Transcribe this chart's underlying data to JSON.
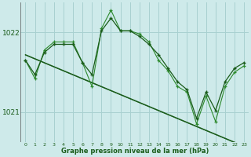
{
  "title": "Graphe pression niveau de la mer (hPa)",
  "bg_color": "#ceeaea",
  "grid_color": "#a8d0d0",
  "line_color_dark": "#1a5c1a",
  "line_color_light": "#2d8a2d",
  "x_labels": [
    "0",
    "1",
    "2",
    "3",
    "4",
    "5",
    "6",
    "7",
    "8",
    "9",
    "10",
    "11",
    "12",
    "13",
    "14",
    "15",
    "16",
    "17",
    "18",
    "19",
    "20",
    "21",
    "22",
    "23"
  ],
  "y_ticks": [
    1021,
    1022
  ],
  "ylim": [
    1020.62,
    1022.38
  ],
  "series1": [
    1021.65,
    1021.47,
    1021.75,
    1021.85,
    1021.85,
    1021.85,
    1021.62,
    1021.47,
    1022.02,
    1022.18,
    1022.02,
    1022.02,
    1021.95,
    1021.85,
    1021.72,
    1021.55,
    1021.38,
    1021.28,
    1020.92,
    1021.25,
    1021.02,
    1021.38,
    1021.55,
    1021.62
  ],
  "series2": [
    1021.65,
    1021.42,
    1021.78,
    1021.88,
    1021.88,
    1021.88,
    1021.62,
    1021.32,
    1022.05,
    1022.28,
    1022.02,
    1022.02,
    1021.98,
    1021.88,
    1021.65,
    1021.52,
    1021.32,
    1021.25,
    1020.85,
    1021.2,
    1020.88,
    1021.32,
    1021.5,
    1021.58
  ],
  "trend": [
    1021.72,
    1021.67,
    1021.62,
    1021.57,
    1021.52,
    1021.47,
    1021.42,
    1021.37,
    1021.32,
    1021.27,
    1021.22,
    1021.17,
    1021.12,
    1021.07,
    1021.02,
    1020.97,
    1020.92,
    1020.87,
    1020.82,
    1020.77,
    1020.72,
    1020.67,
    1020.62,
    1020.57
  ]
}
